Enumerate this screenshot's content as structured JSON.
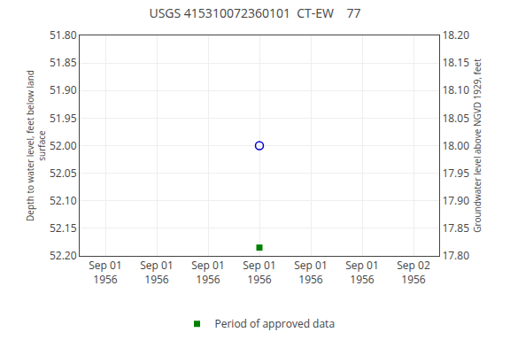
{
  "chart_data": {
    "type": "scatter",
    "title": "USGS 415310072360101  CT-EW    77",
    "y_label": "Depth to water level, feet below land\nsurface",
    "y2_label": "Groundwater level above NGVD 1929, feet",
    "categories": [
      "Sep 01\n1956",
      "Sep 01\n1956",
      "Sep 01\n1956",
      "Sep 01\n1956",
      "Sep 01\n1956",
      "Sep 01\n1956",
      "Sep 02\n1956"
    ],
    "series": [
      {
        "color": "#0000cc",
        "marker": "open_circle",
        "values": [
          null,
          null,
          null,
          52.0,
          null,
          null,
          null
        ]
      },
      {
        "name": "Period of approved data",
        "color": "#008000",
        "marker": "square",
        "values": [
          null,
          null,
          null,
          52.185,
          null,
          null,
          null
        ]
      }
    ],
    "ylim": [
      52.2,
      51.8
    ],
    "yticks": [
      {
        "value": 51.8,
        "label": "51.80"
      },
      51.85,
      {
        "value": 51.9,
        "label": "51.90"
      },
      51.95,
      {
        "value": 52.0,
        "label": "52.00"
      },
      52.05,
      {
        "value": 52.1,
        "label": "52.10"
      },
      52.15,
      {
        "value": 52.2,
        "label": "52.20"
      }
    ],
    "y2lim": [
      17.8,
      18.2
    ],
    "y2ticks": [
      {
        "value": 18.2,
        "label": "18.20"
      },
      18.15,
      {
        "value": 18.1,
        "label": "18.10"
      },
      18.05,
      {
        "value": 18.0,
        "label": "18.00"
      },
      17.95,
      {
        "value": 17.9,
        "label": "17.90"
      },
      17.85,
      {
        "value": 17.8,
        "label": "17.80"
      }
    ],
    "grid": true,
    "legend": "bottom"
  }
}
